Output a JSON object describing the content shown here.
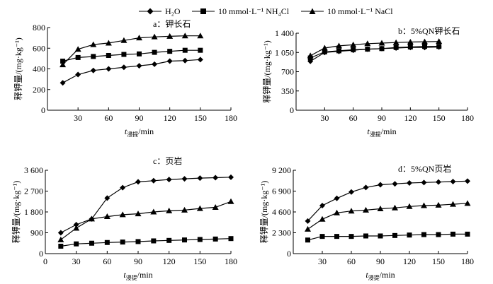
{
  "legend": {
    "items": [
      {
        "label": "H₂O",
        "marker": "diamond"
      },
      {
        "label": "10 mmol·L⁻¹ NH₄Cl",
        "marker": "square"
      },
      {
        "label": "10 mmol·L⁻¹ NaCl",
        "marker": "triangle"
      }
    ]
  },
  "chart_data": [
    {
      "type": "line",
      "title": "a：钾长石",
      "xlabel": "t浸提/min",
      "ylabel": "释钾量/(mg·kg⁻¹)",
      "xlim": [
        0,
        180
      ],
      "ylim": [
        0,
        800
      ],
      "xticks": [
        0,
        30,
        60,
        90,
        120,
        150,
        180
      ],
      "yticks": [
        0,
        200,
        400,
        600,
        800
      ],
      "xtick_labels": [
        "",
        "30",
        "60",
        "90",
        "120",
        "150",
        "180"
      ],
      "ytick_labels": [
        "0",
        "200",
        "400",
        "600",
        "800"
      ],
      "x": [
        15,
        30,
        45,
        60,
        75,
        90,
        105,
        120,
        135,
        150
      ],
      "series": [
        {
          "name": "H₂O",
          "marker": "diamond",
          "values": [
            265,
            345,
            385,
            400,
            415,
            430,
            445,
            475,
            480,
            490
          ]
        },
        {
          "name": "10 mmol·L⁻¹ NH₄Cl",
          "marker": "square",
          "values": [
            475,
            510,
            520,
            530,
            540,
            545,
            560,
            570,
            580,
            580
          ]
        },
        {
          "name": "10 mmol·L⁻¹ NaCl",
          "marker": "triangle",
          "values": [
            440,
            590,
            635,
            650,
            675,
            700,
            710,
            715,
            720,
            720
          ]
        }
      ]
    },
    {
      "type": "line",
      "title": "b：5%QN钾长石",
      "xlabel": "t浸提/min",
      "ylabel": "释钾量/(mg·kg⁻¹)",
      "xlim": [
        0,
        180
      ],
      "ylim": [
        0,
        1400
      ],
      "xticks": [
        0,
        30,
        60,
        90,
        120,
        150,
        180
      ],
      "yticks": [
        0,
        350,
        700,
        1050,
        1400
      ],
      "xtick_labels": [
        "",
        "30",
        "60",
        "90",
        "120",
        "150",
        "180"
      ],
      "ytick_labels": [
        "0",
        "350",
        "700",
        "1 050",
        "1 400"
      ],
      "x": [
        15,
        30,
        45,
        60,
        75,
        90,
        105,
        120,
        135,
        150
      ],
      "series": [
        {
          "name": "H₂O",
          "marker": "diamond",
          "values": [
            890,
            1050,
            1070,
            1090,
            1110,
            1120,
            1130,
            1140,
            1140,
            1150
          ]
        },
        {
          "name": "10 mmol·L⁻¹ NH₄Cl",
          "marker": "square",
          "values": [
            950,
            1060,
            1080,
            1100,
            1110,
            1120,
            1140,
            1150,
            1160,
            1160
          ]
        },
        {
          "name": "10 mmol·L⁻¹ NaCl",
          "marker": "triangle",
          "values": [
            990,
            1130,
            1170,
            1190,
            1210,
            1220,
            1230,
            1240,
            1245,
            1250
          ]
        }
      ]
    },
    {
      "type": "line",
      "title": "c：页岩",
      "xlabel": "t浸提/min",
      "ylabel": "释钾量/(mg·kg⁻¹)",
      "xlim": [
        0,
        180
      ],
      "ylim": [
        0,
        3600
      ],
      "xticks": [
        0,
        30,
        60,
        90,
        120,
        150,
        180
      ],
      "yticks": [
        0,
        900,
        1800,
        2700,
        3600
      ],
      "xtick_labels": [
        "0",
        "30",
        "60",
        "90",
        "120",
        "150",
        "180"
      ],
      "ytick_labels": [
        "0",
        "900",
        "1 800",
        "2 700",
        "3 600"
      ],
      "x": [
        15,
        30,
        45,
        60,
        75,
        90,
        105,
        120,
        135,
        150,
        165,
        180
      ],
      "series": [
        {
          "name": "H₂O",
          "marker": "diamond",
          "values": [
            900,
            1250,
            1500,
            2400,
            2850,
            3100,
            3150,
            3200,
            3230,
            3260,
            3280,
            3300
          ]
        },
        {
          "name": "10 mmol·L⁻¹ NH₄Cl",
          "marker": "square",
          "values": [
            320,
            420,
            450,
            480,
            500,
            520,
            550,
            570,
            590,
            610,
            630,
            650
          ]
        },
        {
          "name": "10 mmol·L⁻¹ NaCl",
          "marker": "triangle",
          "values": [
            600,
            1100,
            1500,
            1600,
            1680,
            1720,
            1800,
            1850,
            1880,
            1950,
            2000,
            2250
          ]
        }
      ]
    },
    {
      "type": "line",
      "title": "d：5%QN页岩",
      "xlabel": "t浸提/min",
      "ylabel": "释钾量/(mg·kg⁻¹)",
      "xlim": [
        0,
        180
      ],
      "ylim": [
        0,
        9200
      ],
      "xticks": [
        0,
        30,
        60,
        90,
        120,
        150,
        180
      ],
      "yticks": [
        0,
        2300,
        4600,
        6900,
        9200
      ],
      "xtick_labels": [
        "",
        "30",
        "60",
        "90",
        "120",
        "150",
        "180"
      ],
      "ytick_labels": [
        "0",
        "2 300",
        "4 600",
        "6 900",
        "9 200"
      ],
      "x": [
        15,
        30,
        45,
        60,
        75,
        90,
        105,
        120,
        135,
        150,
        165,
        180
      ],
      "series": [
        {
          "name": "H₂O",
          "marker": "diamond",
          "values": [
            3600,
            5300,
            6100,
            6800,
            7300,
            7600,
            7700,
            7800,
            7850,
            7900,
            7950,
            8000
          ]
        },
        {
          "name": "10 mmol·L⁻¹ NH₄Cl",
          "marker": "square",
          "values": [
            1500,
            1900,
            1900,
            1900,
            1950,
            1950,
            2000,
            2050,
            2100,
            2100,
            2150,
            2150
          ]
        },
        {
          "name": "10 mmol·L⁻¹ NaCl",
          "marker": "triangle",
          "values": [
            2700,
            3800,
            4500,
            4700,
            4800,
            4950,
            5050,
            5200,
            5300,
            5350,
            5450,
            5550
          ]
        }
      ]
    }
  ]
}
